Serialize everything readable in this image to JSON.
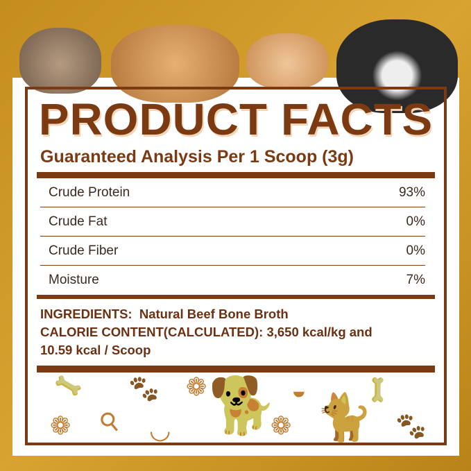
{
  "title": "PRODUCT FACTS",
  "subtitle": "Guaranteed Analysis Per 1 Scoop (3g)",
  "analysis": [
    {
      "label": "Crude Protein",
      "value": "93%"
    },
    {
      "label": "Crude Fat",
      "value": "0%"
    },
    {
      "label": "Crude Fiber",
      "value": "0%"
    },
    {
      "label": "Moisture",
      "value": "7%"
    }
  ],
  "ingredients_line": "INGREDIENTS:  Natural Beef Bone Broth",
  "calorie_line1": "CALORIE CONTENT(CALCULATED): 3,650 kcal/kg and",
  "calorie_line2": "10.59 kcal / Scoop",
  "colors": {
    "brown": "#7b3a12",
    "gold": "#c08a1e",
    "background": "#c9921f"
  },
  "icons": [
    "bone-icon",
    "paw-icon",
    "dog-icon",
    "cat-icon",
    "food-bowl-icon",
    "water-bowl-icon",
    "spoon-icon"
  ]
}
